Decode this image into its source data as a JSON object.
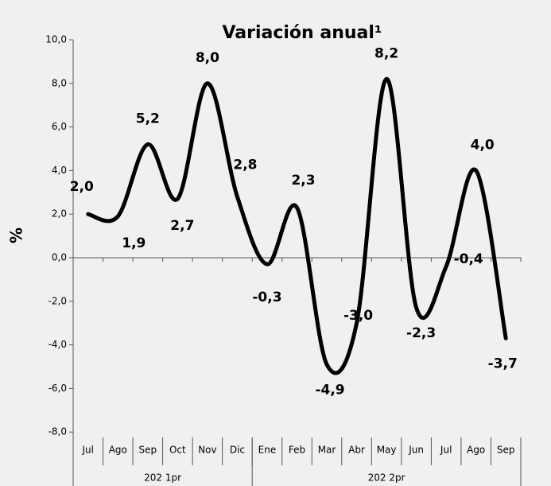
{
  "chart_data": {
    "type": "line",
    "title": "Variación anual¹",
    "y_label": "%",
    "categories": [
      "Jul",
      "Ago",
      "Sep",
      "Oct",
      "Nov",
      "Dic",
      "Ene",
      "Feb",
      "Mar",
      "Abr",
      "May",
      "Jun",
      "Jul",
      "Ago",
      "Sep"
    ],
    "groups": [
      "202 1pr",
      "202 2pr"
    ],
    "values": [
      2.0,
      1.9,
      5.2,
      2.7,
      8.0,
      2.8,
      -0.3,
      2.3,
      -4.9,
      -3.0,
      8.2,
      -2.3,
      -0.4,
      4.0,
      -3.7
    ],
    "value_labels": [
      "2,0",
      "1,9",
      "5,2",
      "2,7",
      "8,0",
      "2,8",
      "-0,3",
      "2,3",
      "-4,9",
      "-3,0",
      "8,2",
      "-2,3",
      "-0,4",
      "4,0",
      "-3,7"
    ],
    "color": "#000000",
    "ylim": [
      -10,
      10
    ],
    "yticks": [
      {
        "value": -8,
        "label": "-8,0"
      },
      {
        "value": -6,
        "label": "-6,0"
      },
      {
        "value": -4,
        "label": "-4,0"
      },
      {
        "value": -2,
        "label": "-2,0"
      },
      {
        "value": 0,
        "label": "0,0"
      },
      {
        "value": 2,
        "label": "2,0"
      },
      {
        "value": 4,
        "label": "4,0"
      },
      {
        "value": 6,
        "label": "6,0"
      },
      {
        "value": 8,
        "label": "8,0"
      },
      {
        "value": 10,
        "label": "10,0"
      }
    ]
  }
}
